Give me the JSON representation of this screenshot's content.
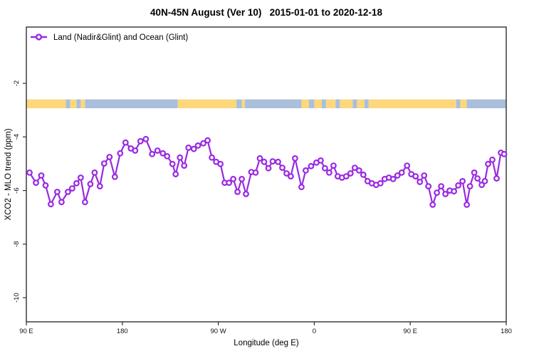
{
  "title": "40N-45N August (Ver 10)   2015-01-01 to 2020-12-18",
  "legend": {
    "label": "Land (Nadir&Glint) and Ocean (Glint)"
  },
  "colors": {
    "series": "#9929E2",
    "land": "#FDD77C",
    "ocean": "#A9BFDC",
    "box": "#2F2F2F",
    "text": "#111111"
  },
  "chart_data": {
    "type": "line",
    "title": "40N-45N August (Ver 10)   2015-01-01 to 2020-12-18",
    "xlabel": "Longitude (deg E)",
    "ylabel": "XCO2 - MLO trend (ppm)",
    "legend_position": "top-left-inside",
    "grid": false,
    "xlim_deg_offset": [
      0,
      450
    ],
    "ylim": [
      -10.9,
      0.1
    ],
    "x_ticks": [
      {
        "offset": 0,
        "label": "90 E"
      },
      {
        "offset": 90,
        "label": "180"
      },
      {
        "offset": 180,
        "label": "90 W"
      },
      {
        "offset": 270,
        "label": "0"
      },
      {
        "offset": 360,
        "label": "90 E"
      },
      {
        "offset": 450,
        "label": "180"
      }
    ],
    "y_ticks": [
      {
        "value": -2,
        "label": "-2"
      },
      {
        "value": -4,
        "label": "-4"
      },
      {
        "value": -6,
        "label": "-6"
      },
      {
        "value": -8,
        "label": "-8"
      },
      {
        "value": -10,
        "label": "-10"
      }
    ],
    "land_ocean_band": {
      "description": "land/ocean strip along 40N-45N latitude band",
      "ppm_top": -2.6,
      "ppm_bottom": -2.93,
      "segments": [
        {
          "from": 0,
          "to": 37,
          "type": "land"
        },
        {
          "from": 37,
          "to": 41,
          "type": "ocean"
        },
        {
          "from": 41,
          "to": 47,
          "type": "land"
        },
        {
          "from": 47,
          "to": 51,
          "type": "ocean"
        },
        {
          "from": 51,
          "to": 55,
          "type": "land"
        },
        {
          "from": 55,
          "to": 142,
          "type": "ocean"
        },
        {
          "from": 142,
          "to": 197,
          "type": "land"
        },
        {
          "from": 197,
          "to": 202,
          "type": "ocean"
        },
        {
          "from": 202,
          "to": 205,
          "type": "land"
        },
        {
          "from": 205,
          "to": 258,
          "type": "ocean"
        },
        {
          "from": 258,
          "to": 265,
          "type": "land"
        },
        {
          "from": 265,
          "to": 270,
          "type": "ocean"
        },
        {
          "from": 270,
          "to": 277,
          "type": "land"
        },
        {
          "from": 277,
          "to": 281,
          "type": "ocean"
        },
        {
          "from": 281,
          "to": 290,
          "type": "land"
        },
        {
          "from": 290,
          "to": 294,
          "type": "ocean"
        },
        {
          "from": 294,
          "to": 306,
          "type": "land"
        },
        {
          "from": 306,
          "to": 310,
          "type": "ocean"
        },
        {
          "from": 310,
          "to": 317,
          "type": "land"
        },
        {
          "from": 317,
          "to": 321,
          "type": "ocean"
        },
        {
          "from": 321,
          "to": 403,
          "type": "land"
        },
        {
          "from": 403,
          "to": 407,
          "type": "ocean"
        },
        {
          "from": 407,
          "to": 413,
          "type": "land"
        },
        {
          "from": 413,
          "to": 450,
          "type": "ocean"
        }
      ]
    },
    "series": [
      {
        "name": "Land (Nadir&Glint) and Ocean (Glint)",
        "marker": "open-circle",
        "color": "#9929E2",
        "points": [
          [
            3,
            -5.33
          ],
          [
            9,
            -5.71
          ],
          [
            14,
            -5.44
          ],
          [
            18,
            -5.81
          ],
          [
            23,
            -6.51
          ],
          [
            29,
            -6.05
          ],
          [
            33,
            -6.43
          ],
          [
            39,
            -6.05
          ],
          [
            43,
            -5.92
          ],
          [
            47,
            -5.73
          ],
          [
            51,
            -5.52
          ],
          [
            55,
            -6.43
          ],
          [
            60,
            -5.76
          ],
          [
            64,
            -5.33
          ],
          [
            69,
            -5.84
          ],
          [
            73,
            -4.99
          ],
          [
            78,
            -4.75
          ],
          [
            83,
            -5.49
          ],
          [
            88,
            -4.61
          ],
          [
            93,
            -4.21
          ],
          [
            98,
            -4.43
          ],
          [
            102,
            -4.51
          ],
          [
            107,
            -4.16
          ],
          [
            112,
            -4.08
          ],
          [
            118,
            -4.64
          ],
          [
            123,
            -4.51
          ],
          [
            128,
            -4.61
          ],
          [
            132,
            -4.72
          ],
          [
            137,
            -5.01
          ],
          [
            140,
            -5.39
          ],
          [
            144,
            -4.77
          ],
          [
            148,
            -5.07
          ],
          [
            152,
            -4.4
          ],
          [
            157,
            -4.45
          ],
          [
            161,
            -4.32
          ],
          [
            166,
            -4.24
          ],
          [
            170,
            -4.13
          ],
          [
            174,
            -4.77
          ],
          [
            178,
            -4.93
          ],
          [
            182,
            -5.01
          ],
          [
            186,
            -5.71
          ],
          [
            190,
            -5.71
          ],
          [
            194,
            -5.57
          ],
          [
            198,
            -6.05
          ],
          [
            202,
            -5.57
          ],
          [
            206,
            -6.13
          ],
          [
            211,
            -5.31
          ],
          [
            215,
            -5.33
          ],
          [
            219,
            -4.8
          ],
          [
            223,
            -4.93
          ],
          [
            227,
            -5.17
          ],
          [
            231,
            -4.91
          ],
          [
            236,
            -4.93
          ],
          [
            240,
            -5.15
          ],
          [
            244,
            -5.36
          ],
          [
            248,
            -5.47
          ],
          [
            252,
            -4.8
          ],
          [
            258,
            -5.87
          ],
          [
            262,
            -5.25
          ],
          [
            267,
            -5.09
          ],
          [
            272,
            -4.96
          ],
          [
            276,
            -4.88
          ],
          [
            280,
            -5.17
          ],
          [
            284,
            -5.33
          ],
          [
            288,
            -5.07
          ],
          [
            292,
            -5.47
          ],
          [
            296,
            -5.52
          ],
          [
            300,
            -5.47
          ],
          [
            304,
            -5.36
          ],
          [
            308,
            -5.15
          ],
          [
            312,
            -5.25
          ],
          [
            316,
            -5.41
          ],
          [
            320,
            -5.65
          ],
          [
            324,
            -5.73
          ],
          [
            328,
            -5.79
          ],
          [
            332,
            -5.73
          ],
          [
            336,
            -5.57
          ],
          [
            340,
            -5.52
          ],
          [
            344,
            -5.57
          ],
          [
            348,
            -5.44
          ],
          [
            352,
            -5.33
          ],
          [
            357,
            -5.07
          ],
          [
            361,
            -5.39
          ],
          [
            365,
            -5.47
          ],
          [
            369,
            -5.68
          ],
          [
            373,
            -5.44
          ],
          [
            377,
            -5.84
          ],
          [
            381,
            -6.53
          ],
          [
            385,
            -6.08
          ],
          [
            389,
            -5.84
          ],
          [
            393,
            -6.13
          ],
          [
            397,
            -6.0
          ],
          [
            401,
            -6.03
          ],
          [
            405,
            -5.81
          ],
          [
            409,
            -5.65
          ],
          [
            413,
            -6.53
          ],
          [
            416,
            -5.84
          ],
          [
            420,
            -5.33
          ],
          [
            423,
            -5.55
          ],
          [
            427,
            -5.79
          ],
          [
            430,
            -5.65
          ],
          [
            433,
            -5.01
          ],
          [
            437,
            -4.85
          ],
          [
            441,
            -5.55
          ],
          [
            445,
            -4.59
          ],
          [
            448,
            -4.64
          ]
        ]
      }
    ]
  }
}
